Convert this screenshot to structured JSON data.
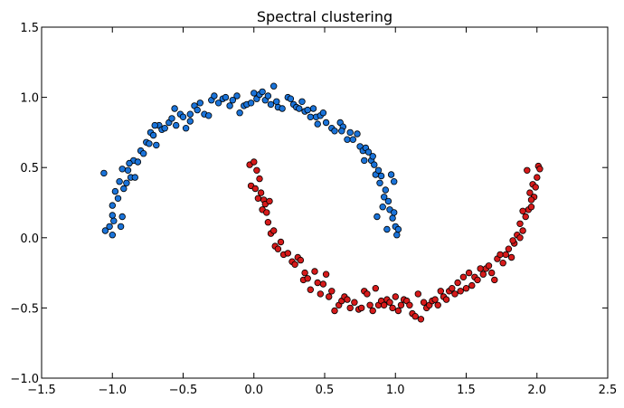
{
  "chart_data": {
    "type": "scatter",
    "title": "Spectral clustering",
    "xlabel": "",
    "ylabel": "",
    "xlim": [
      -1.5,
      2.5
    ],
    "ylim": [
      -1.0,
      1.5
    ],
    "grid": false,
    "legend": "none",
    "x_ticks": [
      "−1.5",
      "−1.0",
      "−0.5",
      "0.0",
      "0.5",
      "1.0",
      "1.5",
      "2.0",
      "2.5"
    ],
    "x_tick_values": [
      -1.5,
      -1.0,
      -0.5,
      0.0,
      0.5,
      1.0,
      1.5,
      2.0,
      2.5
    ],
    "y_ticks": [
      "1.5",
      "1.0",
      "0.5",
      "0.0",
      "−0.5",
      "−1.0"
    ],
    "y_tick_values": [
      1.5,
      1.0,
      0.5,
      0.0,
      -0.5,
      -1.0
    ],
    "series": [
      {
        "color": "#1a73d9",
        "points": [
          [
            -1.06,
            0.46
          ],
          [
            -1.05,
            0.05
          ],
          [
            -1.02,
            0.08
          ],
          [
            -1.0,
            0.02
          ],
          [
            -1.0,
            0.23
          ],
          [
            -0.99,
            0.12
          ],
          [
            -0.98,
            0.33
          ],
          [
            -0.96,
            0.28
          ],
          [
            -0.95,
            0.4
          ],
          [
            -0.94,
            0.08
          ],
          [
            -0.93,
            0.49
          ],
          [
            -0.93,
            0.15
          ],
          [
            -0.92,
            0.35
          ],
          [
            -0.9,
            0.39
          ],
          [
            -0.89,
            0.48
          ],
          [
            -0.87,
            0.43
          ],
          [
            -0.85,
            0.55
          ],
          [
            -0.84,
            0.43
          ],
          [
            -0.82,
            0.54
          ],
          [
            -0.8,
            0.62
          ],
          [
            -0.78,
            0.6
          ],
          [
            -0.76,
            0.68
          ],
          [
            -0.74,
            0.67
          ],
          [
            -0.73,
            0.75
          ],
          [
            -0.71,
            0.73
          ],
          [
            -0.69,
            0.66
          ],
          [
            -0.67,
            0.8
          ],
          [
            -0.65,
            0.77
          ],
          [
            -0.63,
            0.78
          ],
          [
            -0.6,
            0.82
          ],
          [
            -0.58,
            0.85
          ],
          [
            -0.56,
            0.92
          ],
          [
            -0.55,
            0.8
          ],
          [
            -0.52,
            0.88
          ],
          [
            -0.5,
            0.86
          ],
          [
            -0.48,
            0.78
          ],
          [
            -0.45,
            0.88
          ],
          [
            -0.42,
            0.94
          ],
          [
            -0.4,
            0.91
          ],
          [
            -0.38,
            0.96
          ],
          [
            -0.35,
            0.88
          ],
          [
            -0.32,
            0.87
          ],
          [
            -0.3,
            0.98
          ],
          [
            -0.28,
            1.01
          ],
          [
            -0.25,
            0.96
          ],
          [
            -0.22,
            0.99
          ],
          [
            -0.2,
            1.0
          ],
          [
            -0.17,
            0.94
          ],
          [
            -0.15,
            0.98
          ],
          [
            -0.12,
            1.01
          ],
          [
            -0.1,
            0.89
          ],
          [
            -0.07,
            0.94
          ],
          [
            -0.05,
            0.95
          ],
          [
            -0.02,
            0.96
          ],
          [
            0.0,
            1.03
          ],
          [
            0.02,
            0.99
          ],
          [
            0.04,
            1.02
          ],
          [
            0.06,
            1.04
          ],
          [
            0.08,
            0.98
          ],
          [
            0.1,
            1.01
          ],
          [
            0.12,
            0.95
          ],
          [
            0.14,
            1.08
          ],
          [
            0.17,
            0.93
          ],
          [
            0.2,
            0.92
          ],
          [
            0.24,
            1.0
          ],
          [
            0.26,
            0.99
          ],
          [
            0.28,
            0.95
          ],
          [
            0.3,
            0.93
          ],
          [
            0.32,
            0.92
          ],
          [
            0.34,
            0.97
          ],
          [
            0.36,
            0.9
          ],
          [
            0.38,
            0.91
          ],
          [
            0.4,
            0.86
          ],
          [
            0.42,
            0.92
          ],
          [
            0.44,
            0.86
          ],
          [
            0.47,
            0.87
          ],
          [
            0.49,
            0.89
          ],
          [
            0.51,
            0.82
          ],
          [
            0.55,
            0.78
          ],
          [
            0.57,
            0.76
          ],
          [
            0.61,
            0.82
          ],
          [
            0.63,
            0.79
          ],
          [
            0.66,
            0.7
          ],
          [
            0.68,
            0.75
          ],
          [
            0.7,
            0.7
          ],
          [
            0.73,
            0.74
          ],
          [
            0.75,
            0.65
          ],
          [
            0.77,
            0.62
          ],
          [
            0.79,
            0.64
          ],
          [
            0.81,
            0.61
          ],
          [
            0.83,
            0.55
          ],
          [
            0.84,
            0.58
          ],
          [
            0.85,
            0.52
          ],
          [
            0.86,
            0.45
          ],
          [
            0.88,
            0.48
          ],
          [
            0.89,
            0.39
          ],
          [
            0.9,
            0.44
          ],
          [
            0.92,
            0.29
          ],
          [
            0.93,
            0.34
          ],
          [
            0.95,
            0.26
          ],
          [
            0.96,
            0.2
          ],
          [
            0.98,
            0.14
          ],
          [
            0.99,
            0.18
          ],
          [
            1.0,
            0.08
          ],
          [
            1.01,
            0.02
          ],
          [
            1.02,
            0.06
          ],
          [
            0.87,
            0.15
          ],
          [
            0.94,
            0.06
          ],
          [
            0.97,
            0.45
          ],
          [
            0.91,
            0.22
          ],
          [
            0.99,
            0.4
          ],
          [
            -0.88,
            0.53
          ],
          [
            -0.7,
            0.8
          ],
          [
            -0.45,
            0.83
          ],
          [
            0.45,
            0.81
          ],
          [
            0.78,
            0.55
          ],
          [
            -1.0,
            0.16
          ],
          [
            0.16,
            0.97
          ],
          [
            0.62,
            0.76
          ]
        ]
      },
      {
        "color": "#d61a1a",
        "points": [
          [
            -0.03,
            0.52
          ],
          [
            -0.02,
            0.37
          ],
          [
            0.0,
            0.54
          ],
          [
            0.01,
            0.35
          ],
          [
            0.02,
            0.48
          ],
          [
            0.03,
            0.28
          ],
          [
            0.04,
            0.42
          ],
          [
            0.05,
            0.32
          ],
          [
            0.06,
            0.2
          ],
          [
            0.07,
            0.27
          ],
          [
            0.08,
            0.24
          ],
          [
            0.09,
            0.18
          ],
          [
            0.1,
            0.11
          ],
          [
            0.11,
            0.26
          ],
          [
            0.12,
            0.03
          ],
          [
            0.14,
            0.05
          ],
          [
            0.15,
            -0.06
          ],
          [
            0.17,
            -0.08
          ],
          [
            0.19,
            -0.03
          ],
          [
            0.21,
            -0.12
          ],
          [
            0.24,
            -0.11
          ],
          [
            0.27,
            -0.17
          ],
          [
            0.29,
            -0.19
          ],
          [
            0.31,
            -0.14
          ],
          [
            0.33,
            -0.16
          ],
          [
            0.35,
            -0.3
          ],
          [
            0.36,
            -0.25
          ],
          [
            0.38,
            -0.29
          ],
          [
            0.4,
            -0.37
          ],
          [
            0.43,
            -0.24
          ],
          [
            0.45,
            -0.32
          ],
          [
            0.47,
            -0.4
          ],
          [
            0.49,
            -0.33
          ],
          [
            0.51,
            -0.26
          ],
          [
            0.53,
            -0.42
          ],
          [
            0.55,
            -0.38
          ],
          [
            0.57,
            -0.52
          ],
          [
            0.6,
            -0.48
          ],
          [
            0.62,
            -0.45
          ],
          [
            0.64,
            -0.42
          ],
          [
            0.66,
            -0.44
          ],
          [
            0.68,
            -0.5
          ],
          [
            0.71,
            -0.46
          ],
          [
            0.74,
            -0.51
          ],
          [
            0.76,
            -0.5
          ],
          [
            0.78,
            -0.38
          ],
          [
            0.8,
            -0.4
          ],
          [
            0.82,
            -0.48
          ],
          [
            0.84,
            -0.52
          ],
          [
            0.86,
            -0.36
          ],
          [
            0.88,
            -0.48
          ],
          [
            0.9,
            -0.45
          ],
          [
            0.92,
            -0.48
          ],
          [
            0.94,
            -0.44
          ],
          [
            0.96,
            -0.46
          ],
          [
            0.98,
            -0.5
          ],
          [
            1.0,
            -0.42
          ],
          [
            1.02,
            -0.52
          ],
          [
            1.04,
            -0.48
          ],
          [
            1.06,
            -0.44
          ],
          [
            1.08,
            -0.45
          ],
          [
            1.1,
            -0.48
          ],
          [
            1.12,
            -0.54
          ],
          [
            1.14,
            -0.56
          ],
          [
            1.16,
            -0.4
          ],
          [
            1.18,
            -0.58
          ],
          [
            1.2,
            -0.46
          ],
          [
            1.22,
            -0.5
          ],
          [
            1.24,
            -0.48
          ],
          [
            1.26,
            -0.45
          ],
          [
            1.28,
            -0.44
          ],
          [
            1.3,
            -0.48
          ],
          [
            1.32,
            -0.38
          ],
          [
            1.34,
            -0.42
          ],
          [
            1.36,
            -0.44
          ],
          [
            1.38,
            -0.38
          ],
          [
            1.4,
            -0.36
          ],
          [
            1.42,
            -0.4
          ],
          [
            1.44,
            -0.32
          ],
          [
            1.46,
            -0.38
          ],
          [
            1.48,
            -0.28
          ],
          [
            1.5,
            -0.36
          ],
          [
            1.52,
            -0.25
          ],
          [
            1.54,
            -0.34
          ],
          [
            1.56,
            -0.28
          ],
          [
            1.58,
            -0.3
          ],
          [
            1.6,
            -0.22
          ],
          [
            1.62,
            -0.26
          ],
          [
            1.64,
            -0.22
          ],
          [
            1.66,
            -0.2
          ],
          [
            1.68,
            -0.25
          ],
          [
            1.7,
            -0.3
          ],
          [
            1.72,
            -0.15
          ],
          [
            1.74,
            -0.12
          ],
          [
            1.76,
            -0.18
          ],
          [
            1.78,
            -0.12
          ],
          [
            1.8,
            -0.08
          ],
          [
            1.82,
            -0.14
          ],
          [
            1.84,
            -0.04
          ],
          [
            1.86,
            0.02
          ],
          [
            1.88,
            0.1
          ],
          [
            1.9,
            0.05
          ],
          [
            1.92,
            0.15
          ],
          [
            1.94,
            0.2
          ],
          [
            1.95,
            0.32
          ],
          [
            1.96,
            0.22
          ],
          [
            1.97,
            0.38
          ],
          [
            1.98,
            0.29
          ],
          [
            1.99,
            0.36
          ],
          [
            2.0,
            0.43
          ],
          [
            2.01,
            0.51
          ],
          [
            2.02,
            0.49
          ],
          [
            1.93,
            0.48
          ],
          [
            1.96,
            0.27
          ],
          [
            1.88,
            0.0
          ],
          [
            1.83,
            -0.02
          ],
          [
            1.9,
            0.19
          ]
        ]
      }
    ]
  }
}
